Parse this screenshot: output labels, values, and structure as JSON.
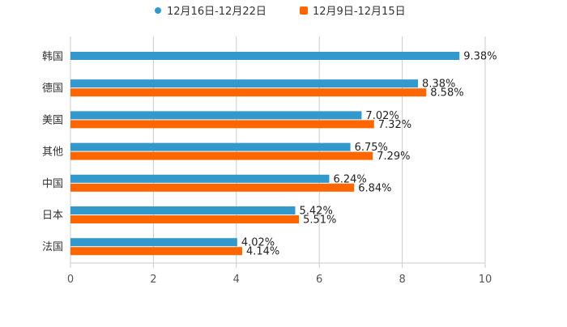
{
  "chart_data": {
    "type": "bar",
    "orientation": "horizontal",
    "categories": [
      "韩国",
      "德国",
      "美国",
      "其他",
      "中国",
      "日本",
      "法国"
    ],
    "series": [
      {
        "name": "12月16日-12月22日",
        "color": "#3399cc",
        "values": [
          9.38,
          8.38,
          7.02,
          6.75,
          6.24,
          5.42,
          4.02
        ]
      },
      {
        "name": "12月9日-12月15日",
        "color": "#ff6600",
        "values": [
          null,
          8.58,
          7.32,
          7.29,
          6.84,
          5.51,
          4.14
        ]
      }
    ],
    "xlim": [
      0,
      10
    ],
    "xticks": [
      "0",
      "2",
      "4",
      "6",
      "8",
      "10"
    ],
    "grid": true,
    "legend": "top-center",
    "value_suffix": "%"
  }
}
